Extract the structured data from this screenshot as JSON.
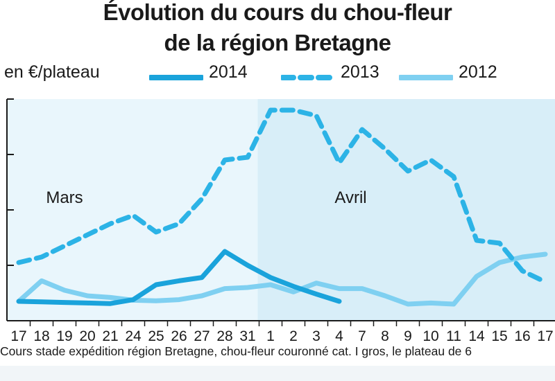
{
  "title_line1": "Évolution du cours du chou-fleur",
  "title_line2": "de la région Bretagne",
  "unit_label": "en €/plateau",
  "source_note": "Cours stade expédition région Bretagne, chou-fleur couronné cat. I gros, le plateau de 6",
  "legend": [
    {
      "label": "2014",
      "color": "#1aa3db",
      "style": "solid"
    },
    {
      "label": "2013",
      "color": "#2cb3e6",
      "style": "dashed"
    },
    {
      "label": "2012",
      "color": "#7fd0f1",
      "style": "solid"
    }
  ],
  "chart_data": {
    "type": "line",
    "title": "Évolution du cours du chou-fleur de la région Bretagne",
    "ylabel": "en €/plateau",
    "categories": [
      "17",
      "18",
      "19",
      "20",
      "21",
      "24",
      "25",
      "26",
      "27",
      "28",
      "31",
      "1",
      "2",
      "3",
      "4",
      "7",
      "8",
      "9",
      "10",
      "11",
      "14",
      "15",
      "16",
      "17"
    ],
    "month_labels": [
      {
        "label": "Mars",
        "category_index": 2
      },
      {
        "label": "Avril",
        "category_index": 14.5
      }
    ],
    "april_start_index": 11,
    "y_ticks": 4,
    "ylim": [
      0,
      4
    ],
    "grid": false,
    "legend_position": "top",
    "series": [
      {
        "name": "2014",
        "color": "#1aa3db",
        "style": "solid",
        "values": [
          0.35,
          0.34,
          0.33,
          0.32,
          0.31,
          0.38,
          0.65,
          0.72,
          0.78,
          1.25,
          1.0,
          0.78,
          0.62,
          0.48,
          0.35,
          null,
          null,
          null,
          null,
          null,
          null,
          null,
          null,
          null
        ]
      },
      {
        "name": "2013",
        "color": "#2cb3e6",
        "style": "dashed",
        "values": [
          1.05,
          1.15,
          1.35,
          1.55,
          1.75,
          1.9,
          1.6,
          1.75,
          2.2,
          2.9,
          2.95,
          3.8,
          3.8,
          3.7,
          2.85,
          3.45,
          3.1,
          2.7,
          2.9,
          2.6,
          1.45,
          1.4,
          0.9,
          0.7
        ]
      },
      {
        "name": "2012",
        "color": "#7fd0f1",
        "style": "solid",
        "values": [
          0.35,
          0.72,
          0.55,
          0.45,
          0.42,
          0.37,
          0.36,
          0.38,
          0.45,
          0.58,
          0.6,
          0.65,
          0.52,
          0.68,
          0.58,
          0.58,
          0.45,
          0.3,
          0.32,
          0.3,
          0.8,
          1.05,
          1.15,
          1.2
        ]
      }
    ]
  }
}
